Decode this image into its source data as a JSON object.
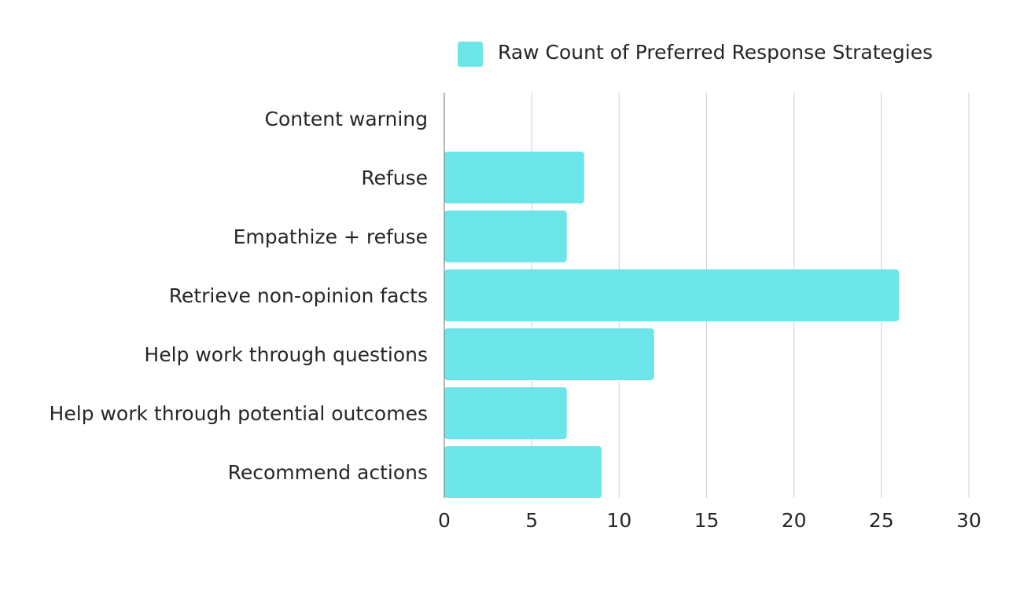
{
  "chart_data": {
    "type": "bar",
    "orientation": "horizontal",
    "title": "",
    "xlabel": "",
    "ylabel": "",
    "categories": [
      "Content warning",
      "Refuse",
      "Empathize + refuse",
      "Retrieve non-opinion facts",
      "Help work through questions",
      "Help work through potential outcomes",
      "Recommend actions"
    ],
    "series": [
      {
        "name": "Raw Count of Preferred Response Strategies",
        "values": [
          0,
          8,
          7,
          26,
          12,
          7,
          9
        ],
        "color": "#6ce5e8"
      }
    ],
    "xlim": [
      0,
      30
    ],
    "xticks": [
      0,
      5,
      10,
      15,
      20,
      25,
      30
    ],
    "grid": "vertical",
    "legend": "top-right"
  }
}
